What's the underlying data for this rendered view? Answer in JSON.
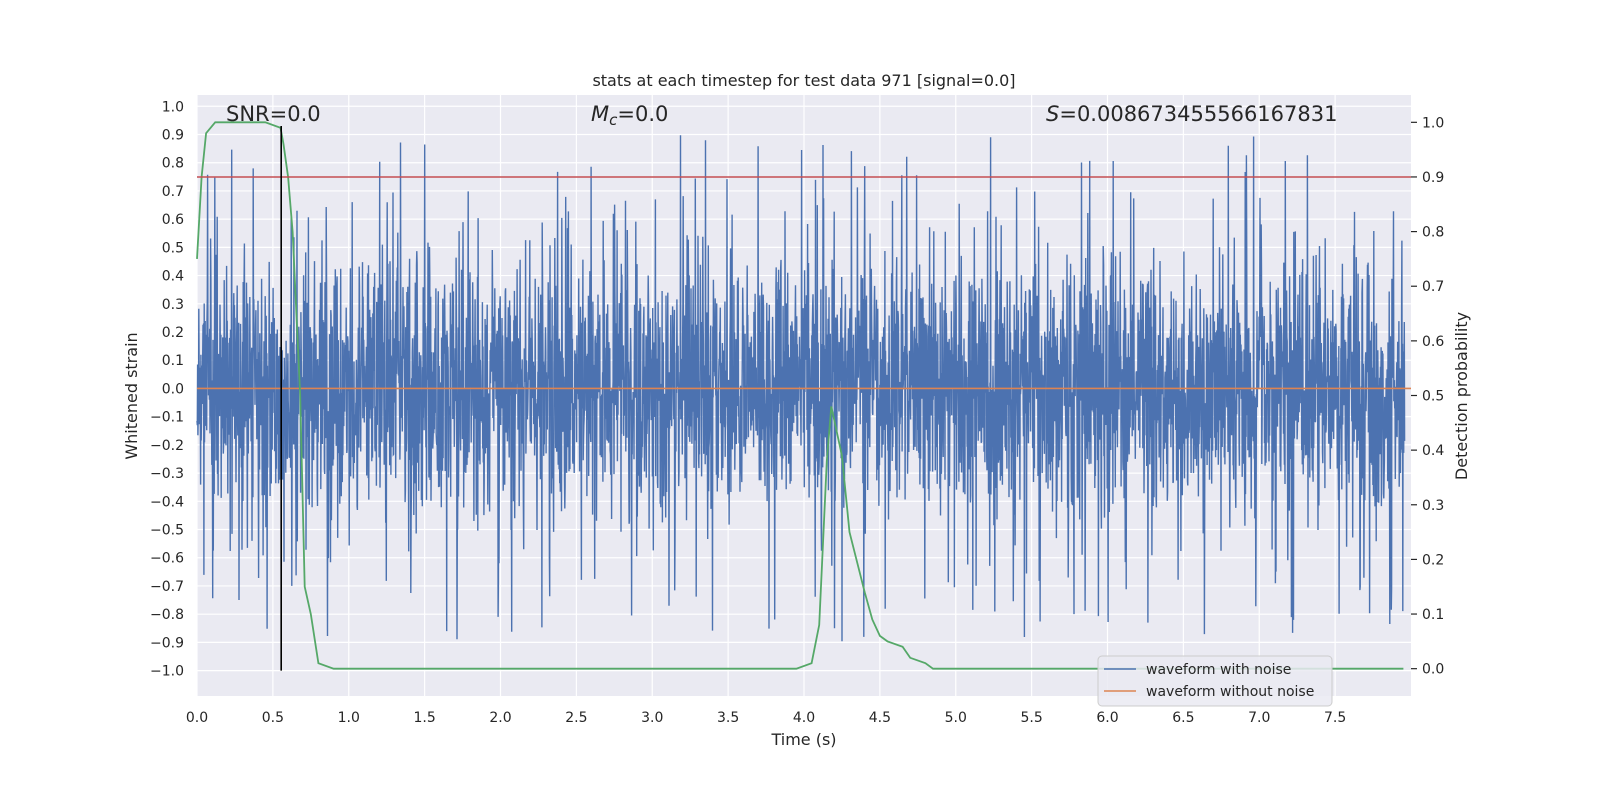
{
  "chart_data": {
    "type": "line",
    "title": "stats at each timestep for test data 971 [signal=0.0]",
    "xlabel": "Time (s)",
    "ylabel_left": "Whitened strain",
    "ylabel_right": "Detection probability",
    "xlim": [
      0.0,
      8.0
    ],
    "ylim_left": [
      -1.09,
      1.04
    ],
    "ylim_right": [
      -0.05,
      1.05
    ],
    "xticks": [
      "0.0",
      "0.5",
      "1.0",
      "1.5",
      "2.0",
      "2.5",
      "3.0",
      "3.5",
      "4.0",
      "4.5",
      "5.0",
      "5.5",
      "6.0",
      "6.5",
      "7.0",
      "7.5"
    ],
    "yticks_left": [
      "1.0",
      "0.9",
      "0.8",
      "0.7",
      "0.6",
      "0.5",
      "0.4",
      "0.3",
      "0.2",
      "0.1",
      "0.0",
      "−0.1",
      "−0.2",
      "−0.3",
      "−0.4",
      "−0.5",
      "−0.6",
      "−0.7",
      "−0.8",
      "−0.9",
      "−1.0"
    ],
    "yticks_right": [
      "1.0",
      "0.9",
      "0.8",
      "0.7",
      "0.6",
      "0.5",
      "0.4",
      "0.3",
      "0.2",
      "0.1",
      "0.0"
    ],
    "annotations": {
      "snr": "SNR=0.0",
      "mc_symbol": "M",
      "mc_sub": "c",
      "mc_value": "=0.0",
      "s_symbol": "S",
      "s_value": "=0.008673455566167831"
    },
    "series": [
      {
        "name": "waveform with noise",
        "axis": "left",
        "color": "#4c72b0",
        "description": "dense whitened strain noise, roughly symmetric, peaks typically within ±0.6 with spikes up to about ±0.95"
      },
      {
        "name": "waveform without noise",
        "axis": "left",
        "color": "#dd8452",
        "x": [
          0.0,
          8.0
        ],
        "y": [
          0.0,
          0.0
        ]
      },
      {
        "name": "detection probability",
        "axis": "right",
        "color": "#55a868",
        "x": [
          0.0,
          0.03,
          0.06,
          0.12,
          0.3,
          0.45,
          0.55,
          0.57,
          0.6,
          0.63,
          0.68,
          0.71,
          0.75,
          0.8,
          0.9,
          1.5,
          2.5,
          3.5,
          3.9,
          3.95,
          4.05,
          4.1,
          4.15,
          4.18,
          4.25,
          4.3,
          4.4,
          4.45,
          4.5,
          4.55,
          4.65,
          4.7,
          4.8,
          4.85,
          5.0,
          6.0,
          7.0,
          7.5,
          7.95
        ],
        "y": [
          0.75,
          0.9,
          0.98,
          1.0,
          1.0,
          1.0,
          0.99,
          0.96,
          0.9,
          0.8,
          0.5,
          0.15,
          0.1,
          0.01,
          0.0,
          0.0,
          0.0,
          0.0,
          0.0,
          0.0,
          0.01,
          0.08,
          0.38,
          0.48,
          0.39,
          0.25,
          0.14,
          0.09,
          0.06,
          0.05,
          0.04,
          0.02,
          0.01,
          0.0,
          0.0,
          0.0,
          0.0,
          0.0,
          0.0
        ]
      },
      {
        "name": "threshold",
        "axis": "right",
        "color": "#c44e52",
        "x": [
          0.0,
          8.0
        ],
        "y": [
          0.9,
          0.9
        ]
      },
      {
        "name": "detection time marker",
        "axis": "left",
        "color": "#000000",
        "x": [
          0.555,
          0.555
        ],
        "y": [
          -1.0,
          0.93
        ]
      }
    ],
    "legend": {
      "location": "lower-right",
      "entries": [
        {
          "label": "waveform with noise",
          "color": "#4c72b0"
        },
        {
          "label": "waveform without noise",
          "color": "#dd8452"
        }
      ]
    },
    "colors": {
      "plot_background": "#eaeaf2",
      "grid": "#ffffff"
    }
  }
}
